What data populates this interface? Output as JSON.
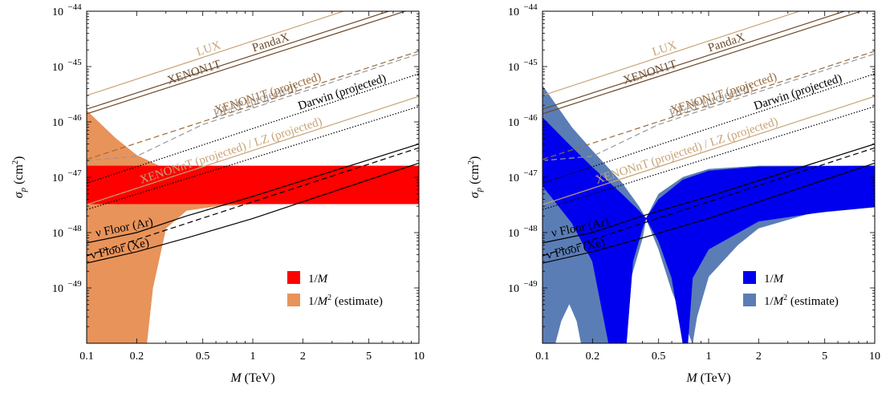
{
  "chart_data": [
    {
      "type": "area",
      "panel": "left",
      "xlabel_var": "M",
      "xlabel_unit": " (TeV)",
      "ylabel_var": "σ",
      "ylabel_sub": "p",
      "ylabel_unit": " (cm",
      "ylabel_unit_sup": "2",
      "ylabel_unit_close": ")",
      "xscale": "log",
      "yscale": "log",
      "xlim": [
        0.1,
        10
      ],
      "ylim": [
        1e-50,
        1e-44
      ],
      "x_ticks": [
        0.1,
        0.2,
        0.5,
        1,
        2,
        5,
        10
      ],
      "x_tick_labels": [
        "0.1",
        "0.2",
        "0.5",
        "1",
        "2",
        "5",
        "10"
      ],
      "y_ticks": [
        -44,
        -45,
        -46,
        -47,
        -48,
        -49
      ],
      "y_tick_labels": [
        "10",
        "10",
        "10",
        "10",
        "10",
        "10"
      ],
      "y_tick_exponents": [
        "−44",
        "−45",
        "−46",
        "−47",
        "−48",
        "−49"
      ],
      "curves": [
        {
          "name": "LUX",
          "label": "LUX",
          "color": "#c8a478",
          "dash": "solid",
          "points": [
            [
              0.1,
              3e-46
            ],
            [
              10,
              2.8e-44
            ]
          ]
        },
        {
          "name": "XENON1T",
          "label": "XENON1T",
          "color": "#6b4a2a",
          "dash": "solid",
          "points": [
            [
              0.1,
              1.4e-46
            ],
            [
              10,
              1.2e-44
            ]
          ]
        },
        {
          "name": "PandaX",
          "label": "PandaX",
          "color": "#6b4a2a",
          "dash": "solid",
          "points": [
            [
              0.1,
              1.7e-46
            ],
            [
              10,
              1.5e-44
            ]
          ]
        },
        {
          "name": "DEAP (projected)",
          "label": "DEAP (projected)",
          "color": "#999999",
          "dash": "dashed",
          "points": [
            [
              0.1,
              2e-47
            ],
            [
              0.2,
              2.4e-47
            ],
            [
              0.5,
              9e-47
            ],
            [
              10,
              1.7e-45
            ]
          ]
        },
        {
          "name": "XENON1T (projected)",
          "label": "XENON1T (projected)",
          "color": "#9a6a3a",
          "dash": "dashed",
          "points": [
            [
              0.1,
              2.1e-47
            ],
            [
              10,
              1.9e-45
            ]
          ]
        },
        {
          "name": "XENONnT (projected) / LZ (projected)",
          "label": "XENONnT (projected) / LZ (projected)",
          "color": "#c8a478",
          "dash": "solid",
          "points": [
            [
              0.1,
              3.2e-48
            ],
            [
              10,
              2.9e-46
            ]
          ]
        },
        {
          "name": "Darwin (projected)",
          "label": "Darwin (projected)",
          "color": "#000000",
          "dash": "dotted",
          "points": [
            [
              0.1,
              7.8e-48
            ],
            [
              10,
              7.4e-46
            ]
          ]
        },
        {
          "name": "Darwin lower",
          "label": "",
          "color": "#000000",
          "dash": "dotted",
          "points": [
            [
              0.1,
              2.6e-48
            ],
            [
              10,
              1.9e-46
            ]
          ]
        },
        {
          "name": "nu Floor (Ar)",
          "label": "ν Floor (Ar)",
          "color": "#000000",
          "dash": "solid",
          "points": [
            [
              0.1,
              6.5e-49
            ],
            [
              0.2,
              1e-48
            ],
            [
              0.4,
              2e-48
            ],
            [
              1,
              4.5e-48
            ],
            [
              10,
              4e-47
            ]
          ]
        },
        {
          "name": "nu Floor (Xe) dashed",
          "label": "",
          "color": "#000000",
          "dash": "dashed",
          "points": [
            [
              0.1,
              3.8e-49
            ],
            [
              10,
              3.4e-47
            ]
          ]
        },
        {
          "name": "nu Floor (Xe)",
          "label": "ν Floor (Xe)",
          "color": "#000000",
          "dash": "solid",
          "points": [
            [
              0.1,
              2.8e-49
            ],
            [
              0.2,
              4.5e-49
            ],
            [
              0.4,
              8e-49
            ],
            [
              1,
              1.8e-48
            ],
            [
              10,
              1.8e-47
            ]
          ]
        }
      ],
      "bands": [
        {
          "name": "1/M^2 (estimate)",
          "color": "#e8935a",
          "upper": [
            [
              0.1,
              1.6e-46
            ],
            [
              0.15,
              5e-47
            ],
            [
              0.2,
              2.5e-47
            ],
            [
              0.3,
              1.4e-47
            ],
            [
              0.5,
              9e-48
            ],
            [
              1,
              7e-48
            ],
            [
              1.5,
              6e-48
            ]
          ],
          "lower": [
            [
              0.1,
              1e-50
            ],
            [
              0.23,
              1e-50
            ],
            [
              0.25,
              1e-49
            ],
            [
              0.3,
              1.2e-48
            ],
            [
              0.4,
              2.5e-48
            ],
            [
              0.6,
              3e-48
            ],
            [
              1,
              3.3e-48
            ],
            [
              1.5,
              3.5e-48
            ]
          ]
        },
        {
          "name": "1/M",
          "color": "#ff0000",
          "upper": [
            [
              0.1,
              1.6e-47
            ],
            [
              10,
              1.6e-47
            ]
          ],
          "lower": [
            [
              0.1,
              3.3e-48
            ],
            [
              10,
              3.3e-48
            ]
          ]
        }
      ],
      "legend": [
        {
          "label": "1/",
          "var": "M",
          "sup": "",
          "suffix": "",
          "color": "#ff0000"
        },
        {
          "label": "1/",
          "var": "M",
          "sup": "2",
          "suffix": " (estimate)",
          "color": "#e8935a"
        }
      ],
      "legend_position": "bottom-right"
    },
    {
      "type": "area",
      "panel": "right",
      "xlabel_var": "M",
      "xlabel_unit": " (TeV)",
      "ylabel_var": "σ",
      "ylabel_sub": "p",
      "ylabel_unit": " (cm",
      "ylabel_unit_sup": "2",
      "ylabel_unit_close": ")",
      "xscale": "log",
      "yscale": "log",
      "xlim": [
        0.1,
        10
      ],
      "ylim": [
        1e-50,
        1e-44
      ],
      "x_ticks": [
        0.1,
        0.2,
        0.5,
        1,
        2,
        5,
        10
      ],
      "x_tick_labels": [
        "0.1",
        "0.2",
        "0.5",
        "1",
        "2",
        "5",
        "10"
      ],
      "y_ticks": [
        -44,
        -45,
        -46,
        -47,
        -48,
        -49
      ],
      "y_tick_labels": [
        "10",
        "10",
        "10",
        "10",
        "10",
        "10"
      ],
      "y_tick_exponents": [
        "−44",
        "−45",
        "−46",
        "−47",
        "−48",
        "−49"
      ],
      "curves": [
        {
          "name": "LUX",
          "label": "LUX",
          "color": "#c8a478",
          "dash": "solid",
          "points": [
            [
              0.1,
              3e-46
            ],
            [
              10,
              2.8e-44
            ]
          ]
        },
        {
          "name": "XENON1T",
          "label": "XENON1T",
          "color": "#6b4a2a",
          "dash": "solid",
          "points": [
            [
              0.1,
              1.4e-46
            ],
            [
              10,
              1.2e-44
            ]
          ]
        },
        {
          "name": "PandaX",
          "label": "PandaX",
          "color": "#6b4a2a",
          "dash": "solid",
          "points": [
            [
              0.1,
              1.7e-46
            ],
            [
              10,
              1.5e-44
            ]
          ]
        },
        {
          "name": "DEAP (projected)",
          "label": "DEAP (projected)",
          "color": "#999999",
          "dash": "dashed",
          "points": [
            [
              0.1,
              2e-47
            ],
            [
              0.2,
              2.4e-47
            ],
            [
              0.5,
              9e-47
            ],
            [
              10,
              1.7e-45
            ]
          ]
        },
        {
          "name": "XENON1T (projected)",
          "label": "XENON1T (projected)",
          "color": "#9a6a3a",
          "dash": "dashed",
          "points": [
            [
              0.1,
              2.1e-47
            ],
            [
              10,
              1.9e-45
            ]
          ]
        },
        {
          "name": "XENONnT (projected) / LZ (projected)",
          "label": "XENONnT (projected) / LZ (projected)",
          "color": "#c8a478",
          "dash": "solid",
          "points": [
            [
              0.1,
              3.2e-48
            ],
            [
              10,
              2.9e-46
            ]
          ]
        },
        {
          "name": "Darwin (projected)",
          "label": "Darwin (projected)",
          "color": "#000000",
          "dash": "dotted",
          "points": [
            [
              0.1,
              7.8e-48
            ],
            [
              10,
              7.4e-46
            ]
          ]
        },
        {
          "name": "Darwin lower",
          "label": "",
          "color": "#000000",
          "dash": "dotted",
          "points": [
            [
              0.1,
              2.6e-48
            ],
            [
              10,
              1.9e-46
            ]
          ]
        },
        {
          "name": "nu Floor (Ar)",
          "label": "ν Floor (Ar)",
          "color": "#000000",
          "dash": "solid",
          "points": [
            [
              0.1,
              6.5e-49
            ],
            [
              0.2,
              1e-48
            ],
            [
              0.4,
              2e-48
            ],
            [
              1,
              4.5e-48
            ],
            [
              10,
              4e-47
            ]
          ]
        },
        {
          "name": "nu Floor (Xe) dashed",
          "label": "",
          "color": "#000000",
          "dash": "dashed",
          "points": [
            [
              0.1,
              3.8e-49
            ],
            [
              10,
              3.4e-47
            ]
          ]
        },
        {
          "name": "nu Floor (Xe)",
          "label": "ν Floor (Xe)",
          "color": "#000000",
          "dash": "solid",
          "points": [
            [
              0.1,
              2.8e-49
            ],
            [
              0.2,
              4.5e-49
            ],
            [
              0.4,
              8e-49
            ],
            [
              1,
              1.8e-48
            ],
            [
              10,
              1.8e-47
            ]
          ]
        }
      ],
      "bands": [
        {
          "name": "1/M^2 (estimate) left lobe",
          "color": "#5b7db5",
          "upper": [
            [
              0.1,
              4.5e-46
            ],
            [
              0.15,
              8e-47
            ],
            [
              0.2,
              3e-47
            ],
            [
              0.3,
              8e-48
            ],
            [
              0.38,
              3e-48
            ],
            [
              0.42,
              1.8e-48
            ]
          ],
          "lower": [
            [
              0.1,
              1e-50
            ],
            [
              0.27,
              1e-50
            ],
            [
              0.3,
              4e-50
            ],
            [
              0.35,
              2e-49
            ],
            [
              0.4,
              8e-49
            ],
            [
              0.42,
              1.8e-48
            ]
          ]
        },
        {
          "name": "1/M^2 (estimate) right lobe",
          "color": "#5b7db5",
          "upper": [
            [
              0.42,
              1.8e-48
            ],
            [
              0.5,
              5e-48
            ],
            [
              0.7,
              1e-47
            ],
            [
              1,
              1.4e-47
            ],
            [
              2,
              1.6e-47
            ],
            [
              10,
              1.6e-47
            ]
          ],
          "lower": [
            [
              0.42,
              1.8e-48
            ],
            [
              0.5,
              5e-49
            ],
            [
              0.6,
              9e-50
            ],
            [
              0.8,
              1e-50
            ],
            [
              0.85,
              3e-50
            ],
            [
              1,
              1.6e-49
            ],
            [
              1.5,
              6e-49
            ],
            [
              2,
              1.2e-48
            ],
            [
              4,
              2.2e-48
            ],
            [
              10,
              2.9e-48
            ]
          ]
        },
        {
          "name": "1/M^2 (estimate) bubble",
          "color": "#5b7db5",
          "upper": [
            [
              0.12,
              1e-50
            ],
            [
              0.13,
              2.5e-50
            ],
            [
              0.145,
              5e-50
            ],
            [
              0.16,
              2.5e-50
            ],
            [
              0.17,
              1e-50
            ]
          ],
          "lower": [
            [
              0.12,
              1e-50
            ],
            [
              0.17,
              1e-50
            ]
          ],
          "hole": true
        },
        {
          "name": "1/M left lobe",
          "color": "#0000ee",
          "upper": [
            [
              0.1,
              1.2e-46
            ],
            [
              0.15,
              3.5e-47
            ],
            [
              0.2,
              1.5e-47
            ],
            [
              0.3,
              5e-48
            ],
            [
              0.38,
              2.5e-48
            ],
            [
              0.42,
              1.8e-48
            ]
          ],
          "lower": [
            [
              0.1,
              7e-48
            ],
            [
              0.15,
              1.5e-48
            ],
            [
              0.2,
              3e-49
            ],
            [
              0.25,
              1e-50
            ],
            [
              0.32,
              1e-50
            ],
            [
              0.35,
              3e-49
            ],
            [
              0.4,
              1.2e-48
            ],
            [
              0.42,
              1.8e-48
            ]
          ]
        },
        {
          "name": "1/M right lobe",
          "color": "#0000ee",
          "upper": [
            [
              0.42,
              1.8e-48
            ],
            [
              0.5,
              4e-48
            ],
            [
              0.7,
              9e-48
            ],
            [
              1,
              1.3e-47
            ],
            [
              2,
              1.55e-47
            ],
            [
              10,
              1.6e-47
            ]
          ],
          "lower": [
            [
              0.42,
              1.8e-48
            ],
            [
              0.5,
              7e-49
            ],
            [
              0.6,
              1.5e-49
            ],
            [
              0.7,
              1e-50
            ],
            [
              0.75,
              1e-50
            ],
            [
              0.8,
              1.5e-49
            ],
            [
              1,
              5e-49
            ],
            [
              2,
              1.6e-48
            ],
            [
              5,
              2.4e-48
            ],
            [
              10,
              2.9e-48
            ]
          ]
        }
      ],
      "legend": [
        {
          "label": "1/",
          "var": "M",
          "sup": "",
          "suffix": "",
          "color": "#0000ee"
        },
        {
          "label": "1/",
          "var": "M",
          "sup": "2",
          "suffix": " (estimate)",
          "color": "#5b7db5"
        }
      ],
      "legend_position": "bottom-right"
    }
  ]
}
